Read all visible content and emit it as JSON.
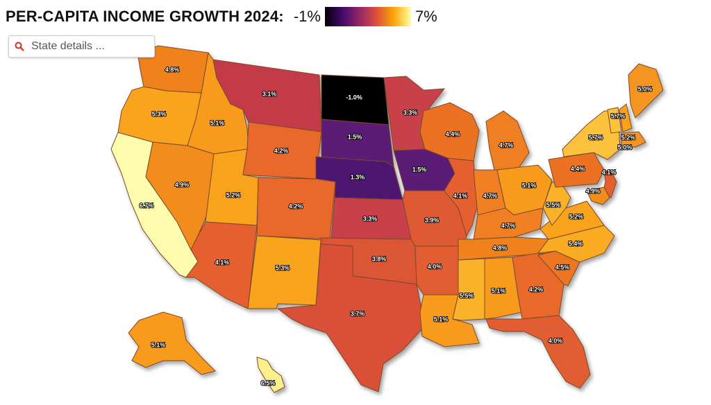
{
  "title": "PER-CAPITA INCOME GROWTH 2024:",
  "legend": {
    "min": "-1%",
    "max": "7%",
    "colors": [
      "#000004",
      "#420a68",
      "#932667",
      "#dd513a",
      "#fca50a",
      "#fcffa4"
    ]
  },
  "search": {
    "placeholder": "State details ..."
  },
  "states": [
    {
      "id": "WA",
      "value": "4.8%",
      "color": "#f0821c"
    },
    {
      "id": "OR",
      "value": "5.3%",
      "color": "#f9a41b"
    },
    {
      "id": "CA",
      "value": "6.7%",
      "color": "#fcfcac"
    },
    {
      "id": "ID",
      "value": "5.1%",
      "color": "#f89b1a"
    },
    {
      "id": "NV",
      "value": "4.9%",
      "color": "#f28c1c"
    },
    {
      "id": "MT",
      "value": "3.1%",
      "color": "#c33a49"
    },
    {
      "id": "WY",
      "value": "4.2%",
      "color": "#e8692c"
    },
    {
      "id": "UT",
      "value": "5.2%",
      "color": "#f9a21b"
    },
    {
      "id": "AZ",
      "value": "4.1%",
      "color": "#e5602f"
    },
    {
      "id": "CO",
      "value": "4.2%",
      "color": "#e8692c"
    },
    {
      "id": "NM",
      "value": "5.3%",
      "color": "#f9a41b"
    },
    {
      "id": "ND",
      "value": "-1.0%",
      "color": "#000004"
    },
    {
      "id": "SD",
      "value": "1.5%",
      "color": "#5c1a74"
    },
    {
      "id": "NE",
      "value": "1.3%",
      "color": "#4d1970"
    },
    {
      "id": "KS",
      "value": "3.3%",
      "color": "#c8404a"
    },
    {
      "id": "OK",
      "value": "3.8%",
      "color": "#dc5534"
    },
    {
      "id": "TX",
      "value": "3.7%",
      "color": "#d94f37"
    },
    {
      "id": "MN",
      "value": "3.3%",
      "color": "#c8404a"
    },
    {
      "id": "IA",
      "value": "1.5%",
      "color": "#5c1a74"
    },
    {
      "id": "MO",
      "value": "3.9%",
      "color": "#df5a32"
    },
    {
      "id": "AR",
      "value": "4.0%",
      "color": "#e25d30"
    },
    {
      "id": "LA",
      "value": "5.1%",
      "color": "#f89b1a"
    },
    {
      "id": "WI",
      "value": "4.4%",
      "color": "#eb7224"
    },
    {
      "id": "IL",
      "value": "4.1%",
      "color": "#e5602f"
    },
    {
      "id": "MI",
      "value": "4.7%",
      "color": "#ef7f20"
    },
    {
      "id": "IN",
      "value": "4.7%",
      "color": "#ef7f20"
    },
    {
      "id": "OH",
      "value": "5.1%",
      "color": "#f89b1a"
    },
    {
      "id": "KY",
      "value": "4.7%",
      "color": "#ef7f20"
    },
    {
      "id": "TN",
      "value": "4.8%",
      "color": "#f0821c"
    },
    {
      "id": "MS",
      "value": "5.5%",
      "color": "#fab22a"
    },
    {
      "id": "AL",
      "value": "5.1%",
      "color": "#f89b1a"
    },
    {
      "id": "GA",
      "value": "4.2%",
      "color": "#e8692c"
    },
    {
      "id": "FL",
      "value": "4.0%",
      "color": "#e25d30"
    },
    {
      "id": "SC",
      "value": "4.5%",
      "color": "#ec7622"
    },
    {
      "id": "NC",
      "value": "5.4%",
      "color": "#f9ab24"
    },
    {
      "id": "VA",
      "value": "5.2%",
      "color": "#f9a21b"
    },
    {
      "id": "WV",
      "value": "5.5%",
      "color": "#fab22a"
    },
    {
      "id": "PA",
      "value": "4.4%",
      "color": "#eb7224"
    },
    {
      "id": "NY",
      "value": "5.7%",
      "color": "#fcc23c"
    },
    {
      "id": "VT",
      "value": "5.7%",
      "color": "#fcc23c"
    },
    {
      "id": "NH",
      "value": "5.2%",
      "color": "#f9a21b"
    },
    {
      "id": "ME",
      "value": "5.0%",
      "color": "#f49520"
    },
    {
      "id": "MA",
      "value": "5.0%",
      "color": "#f49520"
    },
    {
      "id": "NJ",
      "value": "4.1%",
      "color": "#e5602f"
    },
    {
      "id": "MD",
      "value": "4.9%",
      "color": "#f28c1c"
    },
    {
      "id": "AK",
      "value": "5.1%",
      "color": "#f89b1a"
    },
    {
      "id": "HI",
      "value": "6.5%",
      "color": "#fcf08c"
    }
  ]
}
